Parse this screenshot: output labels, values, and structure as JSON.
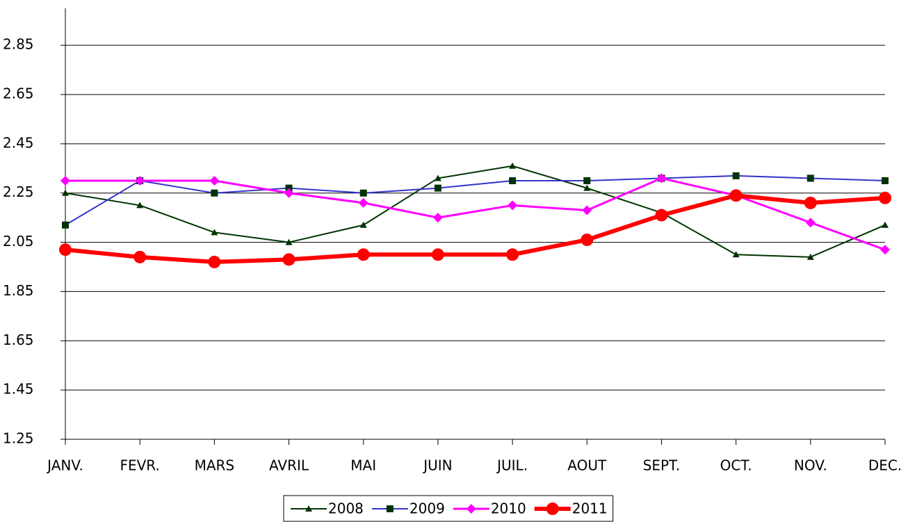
{
  "chart_data": {
    "type": "line",
    "categories": [
      "JANV.",
      "FEVR.",
      "MARS",
      "AVRIL",
      "MAI",
      "JUIN",
      "JUIL.",
      "AOUT",
      "SEPT.",
      "OCT.",
      "NOV.",
      "DEC."
    ],
    "series": [
      {
        "name": "2008",
        "color": "#003300",
        "marker_color": "#003300",
        "marker": "triangle",
        "line_width": 2,
        "values": [
          2.25,
          2.2,
          2.09,
          2.05,
          2.12,
          2.31,
          2.36,
          2.27,
          2.17,
          2.0,
          1.99,
          2.12
        ]
      },
      {
        "name": "2009",
        "color": "#3333cc",
        "marker_color": "#003300",
        "marker": "square",
        "line_width": 2,
        "values": [
          2.12,
          2.3,
          2.25,
          2.27,
          2.25,
          2.27,
          2.3,
          2.3,
          2.31,
          2.32,
          2.31,
          2.3
        ]
      },
      {
        "name": "2010",
        "color": "#ff00ff",
        "marker_color": "#ff00ff",
        "marker": "diamond",
        "line_width": 3,
        "values": [
          2.3,
          2.3,
          2.3,
          2.25,
          2.21,
          2.15,
          2.2,
          2.18,
          2.31,
          2.24,
          2.13,
          2.02
        ]
      },
      {
        "name": "2011",
        "color": "#ff0000",
        "marker_color": "#ff0000",
        "marker": "circle",
        "line_width": 6,
        "values": [
          2.02,
          1.99,
          1.97,
          1.98,
          2.0,
          2.0,
          2.0,
          2.06,
          2.16,
          2.24,
          2.21,
          2.23
        ]
      }
    ],
    "ylim": [
      1.25,
      3.0
    ],
    "yticks": [
      1.25,
      1.45,
      1.65,
      1.85,
      2.05,
      2.25,
      2.45,
      2.65,
      2.85
    ],
    "grid": true,
    "legend": "bottom"
  }
}
